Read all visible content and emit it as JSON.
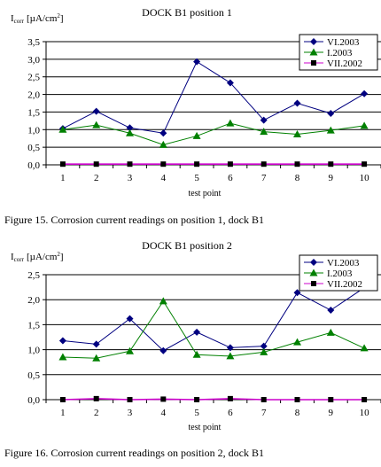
{
  "chart_data": [
    {
      "type": "line",
      "title": "DOCK B1 position 1",
      "ylabel_main": "I",
      "ylabel_sub": "corr",
      "ylabel_unit": "[µA/cm",
      "ylabel_sup": "2",
      "ylabel_close": "]",
      "xlabel": "test point",
      "categories": [
        "1",
        "2",
        "3",
        "4",
        "5",
        "6",
        "7",
        "8",
        "9",
        "10"
      ],
      "yticks": [
        "0,0",
        "0,5",
        "1,0",
        "1,5",
        "2,0",
        "2,5",
        "3,0",
        "3,5"
      ],
      "ylim": [
        0,
        3.5
      ],
      "grid": "horizontal",
      "legend_position": "top-right",
      "series": [
        {
          "name": "VI.2003",
          "color": "#000080",
          "marker": "diamond",
          "values": [
            1.03,
            1.52,
            1.05,
            0.9,
            2.93,
            2.33,
            1.27,
            1.75,
            1.46,
            2.02
          ]
        },
        {
          "name": "I.2003",
          "color": "#008000",
          "marker": "triangle",
          "values": [
            1.0,
            1.13,
            0.9,
            0.57,
            0.82,
            1.18,
            0.94,
            0.87,
            0.98,
            1.11
          ]
        },
        {
          "name": "VII.2002",
          "color": "#cc00cc",
          "marker": "square",
          "values": [
            0.02,
            0.02,
            0.02,
            0.02,
            0.02,
            0.02,
            0.02,
            0.02,
            0.02,
            0.02
          ]
        }
      ]
    },
    {
      "type": "line",
      "title": "DOCK B1 position 2",
      "ylabel_main": "I",
      "ylabel_sub": "corr",
      "ylabel_unit": "[µA/cm",
      "ylabel_sup": "2",
      "ylabel_close": "]",
      "xlabel": "test point",
      "categories": [
        "1",
        "2",
        "3",
        "4",
        "5",
        "6",
        "7",
        "8",
        "9",
        "10"
      ],
      "yticks": [
        "0,0",
        "0,5",
        "1,0",
        "1,5",
        "2,0",
        "2,5"
      ],
      "ylim": [
        0,
        2.5
      ],
      "grid": "horizontal",
      "legend_position": "top-right",
      "series": [
        {
          "name": "VI.2003",
          "color": "#000080",
          "marker": "diamond",
          "values": [
            1.18,
            1.11,
            1.62,
            0.98,
            1.35,
            1.04,
            1.07,
            2.14,
            1.79,
            2.24
          ]
        },
        {
          "name": "I.2003",
          "color": "#008000",
          "marker": "triangle",
          "values": [
            0.85,
            0.83,
            0.97,
            1.97,
            0.9,
            0.87,
            0.95,
            1.15,
            1.34,
            1.03
          ]
        },
        {
          "name": "VII.2002",
          "color": "#cc00cc",
          "marker": "square",
          "values": [
            0.0,
            0.02,
            0.0,
            0.01,
            0.0,
            0.02,
            0.0,
            0.0,
            0.0,
            0.0
          ]
        }
      ]
    }
  ],
  "captions": [
    "Figure 15. Corrosion current readings on position 1, dock B1",
    "Figure 16. Corrosion current readings on position 2, dock B1"
  ]
}
